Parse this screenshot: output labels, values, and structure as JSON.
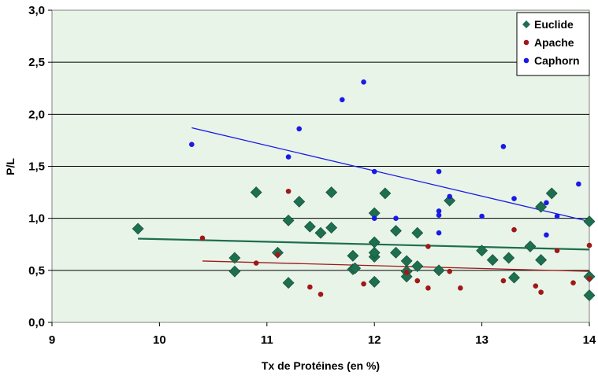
{
  "chart_data": {
    "type": "scatter",
    "title": "",
    "xlabel": "Tx de Protéines (en %)",
    "ylabel": "P/L",
    "xlim": [
      9,
      14
    ],
    "ylim": [
      0,
      3
    ],
    "x_ticks": [
      "9",
      "10",
      "11",
      "12",
      "13",
      "14"
    ],
    "y_ticks": [
      "0,0",
      "0,5",
      "1,0",
      "1,5",
      "2,0",
      "2,5",
      "3,0"
    ],
    "grid": "horizontal",
    "plot_background": "#e8f4e8",
    "legend_position": "top-right",
    "series": [
      {
        "name": "Euclide",
        "marker": "diamond",
        "color": "#1e6e50",
        "points": [
          [
            9.8,
            0.9
          ],
          [
            10.7,
            0.62
          ],
          [
            10.7,
            0.49
          ],
          [
            10.9,
            1.25
          ],
          [
            11.1,
            0.67
          ],
          [
            11.2,
            0.98
          ],
          [
            11.2,
            0.38
          ],
          [
            11.3,
            1.16
          ],
          [
            11.4,
            0.92
          ],
          [
            11.5,
            0.86
          ],
          [
            11.6,
            1.25
          ],
          [
            11.6,
            0.91
          ],
          [
            11.8,
            0.64
          ],
          [
            11.8,
            0.51
          ],
          [
            11.82,
            0.52
          ],
          [
            12.0,
            1.05
          ],
          [
            12.0,
            0.77
          ],
          [
            12.0,
            0.63
          ],
          [
            12.0,
            0.67
          ],
          [
            12.0,
            0.39
          ],
          [
            12.1,
            1.24
          ],
          [
            12.2,
            0.88
          ],
          [
            12.2,
            0.67
          ],
          [
            12.3,
            0.59
          ],
          [
            12.3,
            0.49
          ],
          [
            12.3,
            0.44
          ],
          [
            12.4,
            0.86
          ],
          [
            12.4,
            0.54
          ],
          [
            12.6,
            0.5
          ],
          [
            12.7,
            1.17
          ],
          [
            13.0,
            0.69
          ],
          [
            13.1,
            0.6
          ],
          [
            13.25,
            0.62
          ],
          [
            13.3,
            0.43
          ],
          [
            13.45,
            0.73
          ],
          [
            13.55,
            1.11
          ],
          [
            13.55,
            0.6
          ],
          [
            13.65,
            1.24
          ],
          [
            14.0,
            0.97
          ],
          [
            14.0,
            0.44
          ],
          [
            14.0,
            0.26
          ]
        ]
      },
      {
        "name": "Apache",
        "marker": "circle",
        "color": "#a01818",
        "points": [
          [
            10.4,
            0.81
          ],
          [
            10.9,
            0.57
          ],
          [
            11.1,
            0.65
          ],
          [
            11.2,
            1.26
          ],
          [
            11.4,
            0.34
          ],
          [
            11.5,
            0.27
          ],
          [
            11.9,
            0.37
          ],
          [
            12.3,
            0.48
          ],
          [
            12.4,
            0.4
          ],
          [
            12.5,
            0.73
          ],
          [
            12.5,
            0.33
          ],
          [
            12.7,
            0.49
          ],
          [
            12.8,
            0.33
          ],
          [
            13.2,
            0.4
          ],
          [
            13.3,
            0.89
          ],
          [
            13.5,
            0.35
          ],
          [
            13.55,
            0.29
          ],
          [
            13.7,
            0.69
          ],
          [
            13.85,
            0.38
          ],
          [
            14.0,
            0.74
          ],
          [
            14.0,
            0.42
          ]
        ]
      },
      {
        "name": "Caphorn",
        "marker": "circle",
        "color": "#1a1ae6",
        "points": [
          [
            10.3,
            1.71
          ],
          [
            11.2,
            1.59
          ],
          [
            11.3,
            1.86
          ],
          [
            11.7,
            2.14
          ],
          [
            11.9,
            2.31
          ],
          [
            12.0,
            1.45
          ],
          [
            12.0,
            1.0
          ],
          [
            12.2,
            1.0
          ],
          [
            12.6,
            1.45
          ],
          [
            12.6,
            1.07
          ],
          [
            12.6,
            1.03
          ],
          [
            12.6,
            0.86
          ],
          [
            12.7,
            1.21
          ],
          [
            13.0,
            1.02
          ],
          [
            13.2,
            1.69
          ],
          [
            13.3,
            1.19
          ],
          [
            13.6,
            1.15
          ],
          [
            13.6,
            0.84
          ],
          [
            13.7,
            1.02
          ],
          [
            13.9,
            1.33
          ]
        ]
      }
    ],
    "trendlines": [
      {
        "series": "Euclide",
        "x": [
          9.8,
          14.0
        ],
        "y": [
          0.805,
          0.7
        ],
        "color": "#1e6e50"
      },
      {
        "series": "Apache",
        "x": [
          10.4,
          14.0
        ],
        "y": [
          0.59,
          0.49
        ],
        "color": "#a01818"
      },
      {
        "series": "Caphorn",
        "x": [
          10.3,
          14.0
        ],
        "y": [
          1.87,
          0.97
        ],
        "color": "#1a1ae6"
      }
    ]
  }
}
